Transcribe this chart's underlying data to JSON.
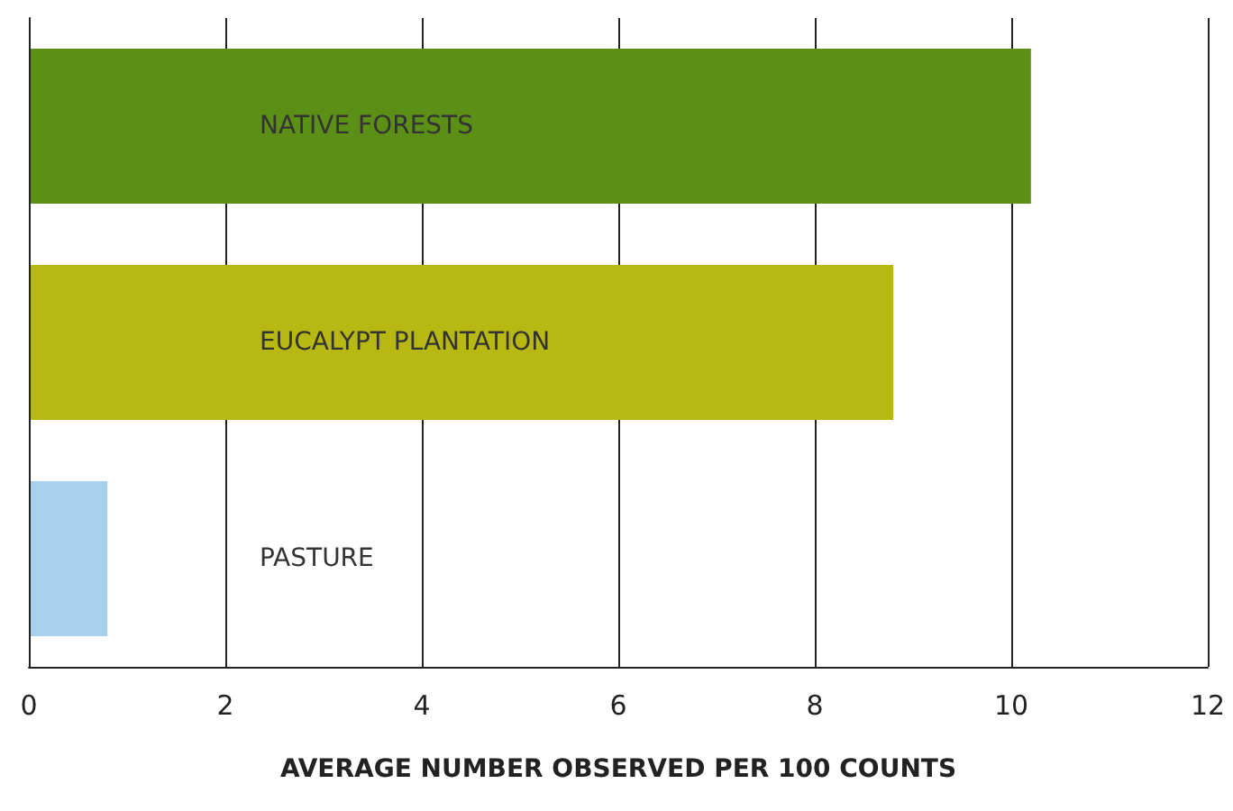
{
  "chart_data": {
    "type": "bar",
    "orientation": "horizontal",
    "xlabel": "AVERAGE NUMBER OBSERVED PER 100 COUNTS",
    "categories": [
      "NATIVE FORESTS",
      "EUCALYPT PLANTATION",
      "PASTURE"
    ],
    "values": [
      10.2,
      8.8,
      0.8
    ],
    "colors": [
      "#5c8f16",
      "#b8b812",
      "#a8d0ec"
    ],
    "xlim": [
      0,
      12
    ],
    "xticks": [
      0,
      2,
      4,
      6,
      8,
      10,
      12
    ],
    "grid": "x"
  }
}
